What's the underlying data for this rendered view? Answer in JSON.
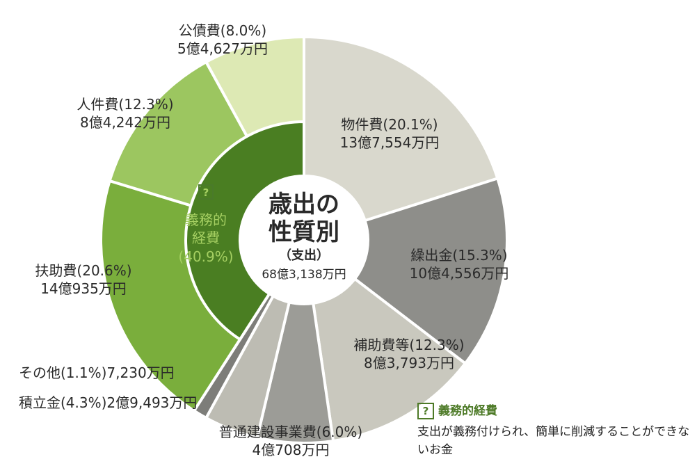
{
  "chart_data": {
    "type": "pie",
    "title": "歳出の",
    "title_line2": "性質別",
    "subtitle": "（支出）",
    "total": "68億3,138万円",
    "slices": [
      {
        "label": "物件費",
        "pct": "(20.1%)",
        "amount": "13億7,554万円",
        "value": 20.1,
        "color": "#d9d8cd",
        "obligatory": false
      },
      {
        "label": "繰出金",
        "pct": "(15.3%)",
        "amount": "10億4,556万円",
        "value": 15.3,
        "color": "#8e8e8a",
        "obligatory": false
      },
      {
        "label": "補助費等",
        "pct": "(12.3%)",
        "amount": "8億3,793万円",
        "value": 12.3,
        "color": "#c9c8be",
        "obligatory": false
      },
      {
        "label": "普通建設事業費",
        "pct": "(6.0%)",
        "amount": "4億708万円",
        "value": 6.0,
        "color": "#9c9c97",
        "obligatory": false
      },
      {
        "label": "積立金",
        "pct": "(4.3%)",
        "amount": "2億9,493万円",
        "value": 4.3,
        "color": "#bdbcb3",
        "obligatory": false
      },
      {
        "label": "その他",
        "pct": "(1.1%)",
        "amount": "7,230万円",
        "value": 1.1,
        "color": "#7d7d79",
        "obligatory": false
      },
      {
        "label": "扶助費",
        "pct": "(20.6%)",
        "amount": "14億935万円",
        "value": 20.6,
        "color": "#7aae3c",
        "obligatory": true
      },
      {
        "label": "人件費",
        "pct": "(12.3%)",
        "amount": "8億4,242万円",
        "value": 12.3,
        "color": "#9cc660",
        "obligatory": true
      },
      {
        "label": "公債費",
        "pct": "(8.0%)",
        "amount": "5億4,627万円",
        "value": 8.0,
        "color": "#dde9b4",
        "obligatory": true
      }
    ],
    "obligatory_group": {
      "q": "?",
      "line1": "義務的",
      "line2": "経費",
      "pct": "(40.9%)",
      "value": 40.9,
      "color": "#4a7e22",
      "label_color": "#a5cf62"
    }
  },
  "note": {
    "q": "?",
    "title": "義務的経費",
    "body": "支出が義務付けられ、簡単に削減することができないお金"
  }
}
